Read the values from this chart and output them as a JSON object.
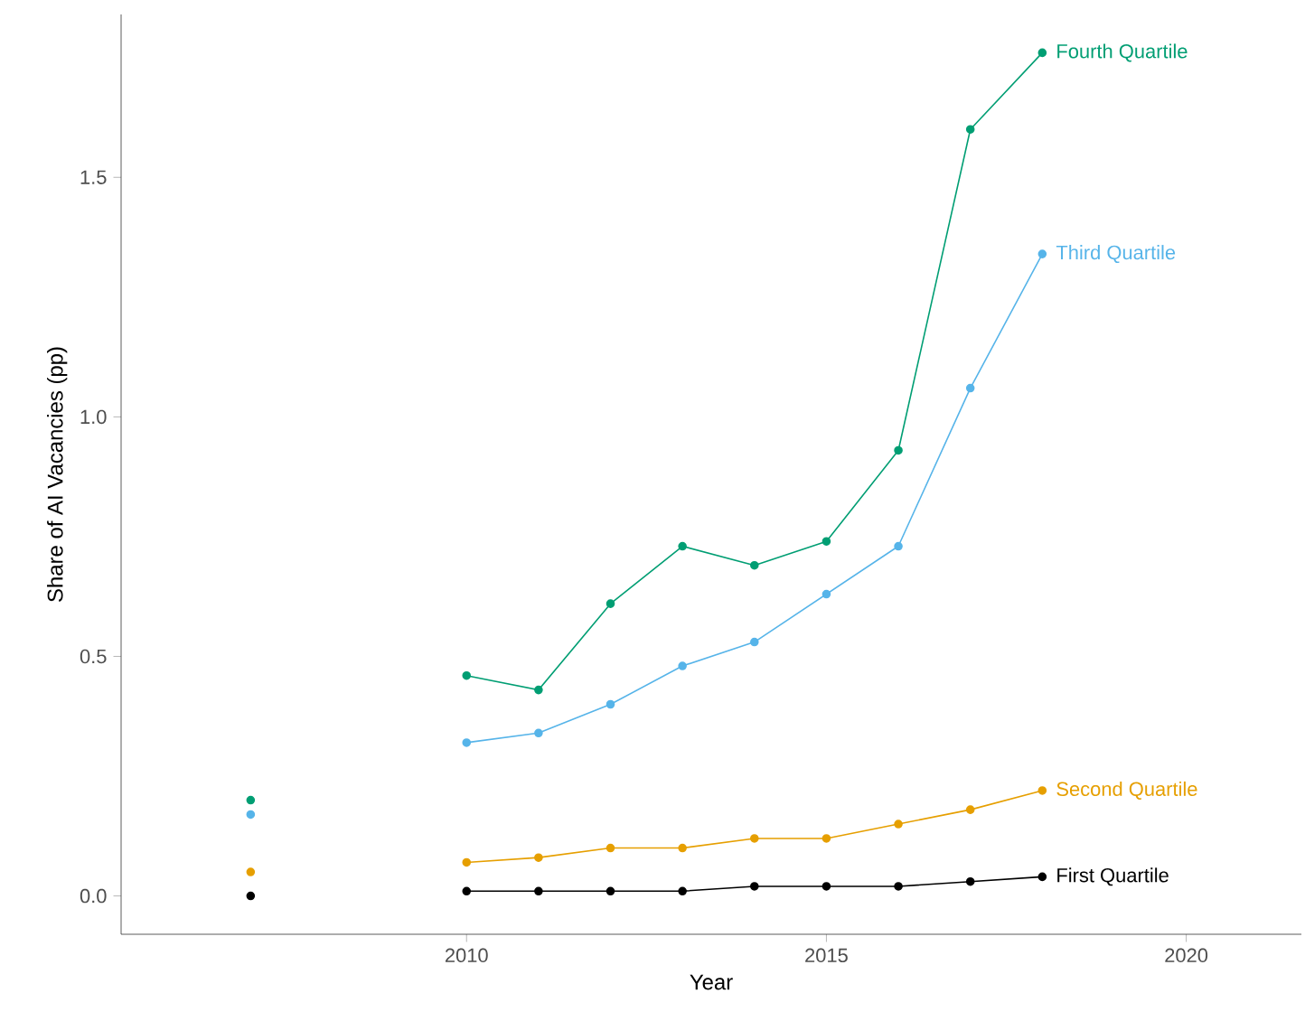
{
  "chart_data": {
    "type": "line",
    "xlabel": "Year",
    "ylabel": "Share of AI Vacancies (pp)",
    "x": [
      2007,
      2008,
      2009,
      2010,
      2011,
      2012,
      2013,
      2014,
      2015,
      2016,
      2017,
      2018
    ],
    "series": [
      {
        "name": "Fourth Quartile",
        "color": "#009e73",
        "values": [
          0.2,
          null,
          null,
          0.46,
          0.43,
          0.61,
          0.73,
          0.69,
          0.74,
          0.93,
          1.6,
          1.76
        ]
      },
      {
        "name": "Third Quartile",
        "color": "#56b4e9",
        "values": [
          0.17,
          null,
          null,
          0.32,
          0.34,
          0.4,
          0.48,
          0.53,
          0.63,
          0.73,
          1.06,
          1.34
        ]
      },
      {
        "name": "Second Quartile",
        "color": "#e69f00",
        "values": [
          0.05,
          null,
          null,
          0.07,
          0.08,
          0.1,
          0.1,
          0.12,
          0.12,
          0.15,
          0.18,
          0.22
        ]
      },
      {
        "name": "First Quartile",
        "color": "#000000",
        "values": [
          0.0,
          null,
          null,
          0.01,
          0.01,
          0.01,
          0.01,
          0.02,
          0.02,
          0.02,
          0.03,
          0.04
        ]
      }
    ],
    "xlim": [
      2005.2,
      2021.6
    ],
    "ylim": [
      -0.08,
      1.84
    ],
    "xticks": [
      2010,
      2015,
      2020
    ],
    "yticks": [
      {
        "value": 0,
        "label": "0.0"
      },
      {
        "value": 0.5,
        "label": "0.5"
      },
      {
        "value": 1.0,
        "label": "1.0"
      },
      {
        "value": 1.5,
        "label": "1.5"
      }
    ],
    "marker": "circle",
    "line_style": "solid",
    "grid": false
  }
}
